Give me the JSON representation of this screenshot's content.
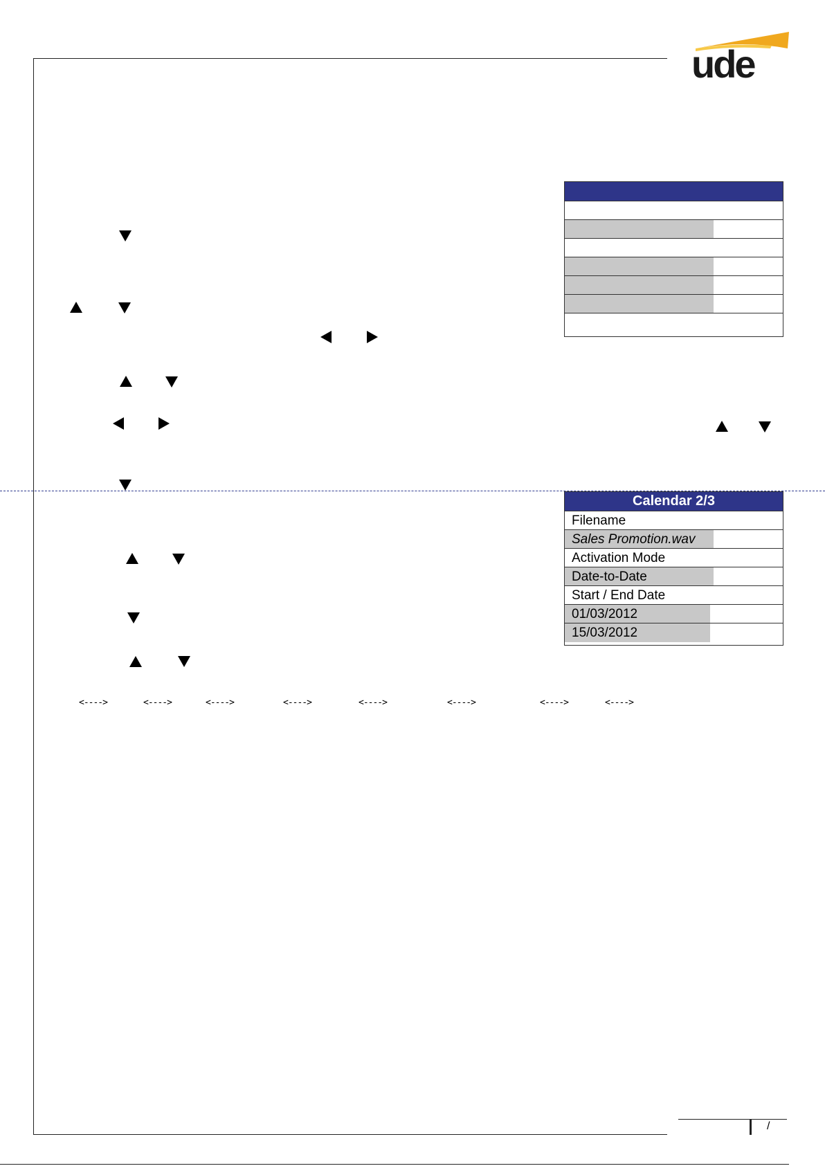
{
  "brand": {
    "logo_text": "ude",
    "logo_accent_color": "#f0a81e",
    "logo_text_color": "#1a1a1a"
  },
  "screen1": {
    "title": "",
    "title_color": "#2e3589",
    "rows": [
      {
        "type": "label",
        "text": ""
      },
      {
        "type": "value",
        "text": ""
      },
      {
        "type": "label",
        "text": ""
      },
      {
        "type": "value",
        "text": ""
      },
      {
        "type": "value",
        "text": ""
      },
      {
        "type": "value",
        "text": ""
      },
      {
        "type": "label",
        "text": ""
      }
    ]
  },
  "screen2": {
    "title": "Calendar 2/3",
    "title_color": "#2e3589",
    "rows": [
      {
        "type": "label",
        "text": "Filename"
      },
      {
        "type": "value",
        "text": "Sales Promotion.wav",
        "italic": true
      },
      {
        "type": "label",
        "text": "Activation Mode"
      },
      {
        "type": "value",
        "text": "Date-to-Date"
      },
      {
        "type": "label",
        "text": "Start / End Date"
      },
      {
        "type": "value",
        "text": "01/03/2012"
      },
      {
        "type": "value",
        "text": "15/03/2012"
      }
    ]
  },
  "arrow_glyphs": {
    "text": "<---->"
  },
  "footer": {
    "page_separator": "/"
  },
  "icons": {
    "nav_down": "down-triangle-icon",
    "nav_up": "up-triangle-icon",
    "nav_left": "left-triangle-icon",
    "nav_right": "right-triangle-icon"
  }
}
